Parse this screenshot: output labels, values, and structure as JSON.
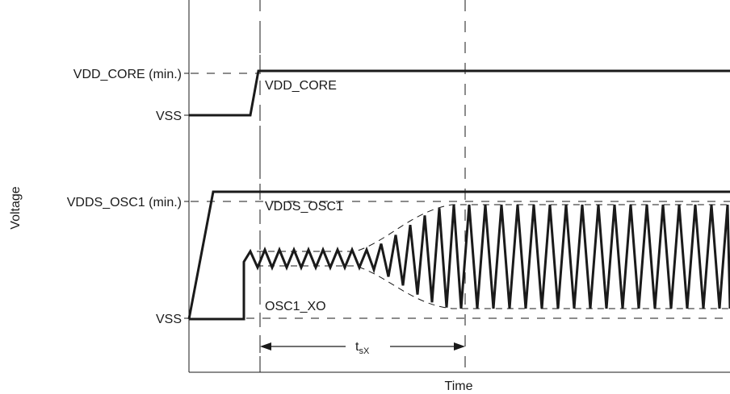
{
  "diagram": {
    "top_caption": "",
    "y_axis_label": "Voltage",
    "x_axis_label": "Time",
    "level_labels": {
      "vdd_core_min": "VDD_CORE (min.)",
      "vss_core": "VSS",
      "vdds_osc1_min": "VDDS_OSC1 (min.)",
      "vss_osc": "VSS"
    },
    "signal_labels": {
      "vdd_core": "VDD_CORE",
      "vdds_osc1": "VDDS_OSC1",
      "osc1_xo": "OSC1_XO"
    },
    "interval_label": {
      "main": "t",
      "subscript": "sX"
    }
  }
}
